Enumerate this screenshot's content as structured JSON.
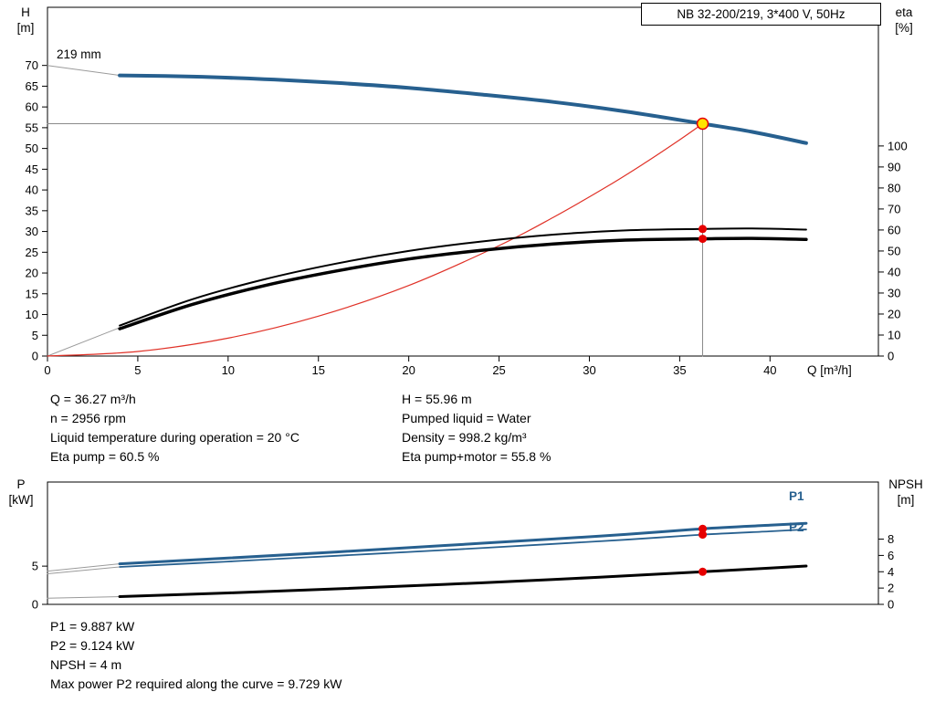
{
  "title_box": "NB 32-200/219, 3*400 V, 50Hz",
  "info_top": {
    "left": [
      "Q = 36.27 m³/h",
      "n = 2956 rpm",
      "Liquid temperature during operation = 20 °C",
      "Eta pump = 60.5 %"
    ],
    "right": [
      "H = 55.96 m",
      "Pumped liquid = Water",
      "Density = 998.2 kg/m³",
      "Eta pump+motor = 55.8 %"
    ]
  },
  "info_bottom": [
    "P1 = 9.887 kW",
    "P2 = 9.124 kW",
    "NPSH = 4 m",
    "Max power P2 required along the curve = 9.729 kW"
  ],
  "colors": {
    "curve_blue": "#27608f",
    "curve_black": "#000000",
    "curve_red": "#e03127",
    "grey_line": "#9a9a9a",
    "duty_grey": "#8a8a8a",
    "dot_red": "#e60000",
    "dot_yellow": "#ffe400"
  },
  "chart_data": [
    {
      "type": "line",
      "title": "NB 32-200/219, 3*400 V, 50Hz",
      "impeller_label": "219 mm",
      "axes": {
        "x": {
          "label": "Q [m³/h]",
          "min": 0,
          "max": 46,
          "ticks": [
            0,
            5,
            10,
            15,
            20,
            25,
            30,
            35,
            40
          ]
        },
        "left": {
          "label": "H",
          "unit": "[m]",
          "min": 0,
          "max": 84,
          "ticks": [
            0,
            5,
            10,
            15,
            20,
            25,
            30,
            35,
            40,
            45,
            50,
            55,
            60,
            65,
            70
          ]
        },
        "right": {
          "label": "eta",
          "unit": "[%]",
          "min": 0,
          "max": 166,
          "ticks": [
            0,
            10,
            20,
            30,
            40,
            50,
            60,
            70,
            80,
            90,
            100
          ]
        }
      },
      "series": [
        {
          "name": "duty-flow-line",
          "axis": "left",
          "color": "#8a8a8a",
          "width": 1,
          "smooth": false,
          "x": [
            36.27,
            36.27
          ],
          "y": [
            0,
            55.96
          ]
        },
        {
          "name": "duty-head-line",
          "axis": "left",
          "color": "#8a8a8a",
          "width": 1,
          "smooth": false,
          "x": [
            0,
            36.27
          ],
          "y": [
            55.96,
            55.96
          ]
        },
        {
          "name": "head-extension",
          "axis": "left",
          "color": "#9a9a9a",
          "width": 1,
          "smooth": false,
          "x": [
            0,
            4
          ],
          "y": [
            70,
            67.6
          ]
        },
        {
          "name": "eta-extension",
          "axis": "right",
          "color": "#9a9a9a",
          "width": 1,
          "smooth": false,
          "x": [
            0,
            4
          ],
          "y": [
            0,
            13.5
          ]
        },
        {
          "name": "system-curve",
          "axis": "left",
          "color": "#e03127",
          "width": 1.2,
          "smooth": true,
          "x": [
            0,
            5,
            10,
            15,
            20,
            25,
            28,
            31,
            33,
            35,
            36.27
          ],
          "y": [
            0,
            1.1,
            4.3,
            9.6,
            17.0,
            26.6,
            33.4,
            40.9,
            46.3,
            52.1,
            55.96
          ]
        },
        {
          "name": "eta-pump",
          "axis": "right",
          "color": "#000000",
          "width": 2,
          "smooth": true,
          "x": [
            4,
            8,
            12,
            16,
            20,
            24,
            28,
            32,
            36.27,
            39,
            42
          ],
          "y": [
            14.5,
            27,
            36.5,
            44,
            50,
            54.5,
            57.8,
            59.8,
            60.5,
            60.7,
            60.2
          ]
        },
        {
          "name": "eta-pump-motor",
          "axis": "right",
          "color": "#000000",
          "width": 3.5,
          "smooth": true,
          "x": [
            4,
            8,
            12,
            16,
            20,
            24,
            28,
            32,
            36.27,
            39,
            42
          ],
          "y": [
            13,
            24.5,
            33.5,
            40.5,
            46.2,
            50.3,
            53.3,
            55.2,
            55.8,
            56.0,
            55.5
          ]
        },
        {
          "name": "head-219mm",
          "axis": "left",
          "color": "#27608f",
          "width": 4,
          "smooth": true,
          "x": [
            4,
            8,
            12,
            16,
            20,
            24,
            28,
            32,
            36.27,
            39,
            42
          ],
          "y": [
            67.6,
            67.3,
            66.7,
            65.8,
            64.6,
            63.0,
            61.2,
            58.9,
            55.96,
            54.0,
            51.3
          ]
        }
      ],
      "markers": [
        {
          "name": "duty-point",
          "axis": "left",
          "x": 36.27,
          "y": 55.96,
          "r": 6,
          "fill": "#ffe400",
          "stroke": "#e60000"
        },
        {
          "name": "eta-pump-point",
          "axis": "right",
          "x": 36.27,
          "y": 60.5,
          "r": 4.5,
          "fill": "#e60000"
        },
        {
          "name": "eta-pump-motor-point",
          "axis": "right",
          "x": 36.27,
          "y": 55.8,
          "r": 4.5,
          "fill": "#e60000"
        }
      ]
    },
    {
      "type": "line",
      "series_labels": {
        "p1": "P1",
        "p2": "P2"
      },
      "axes": {
        "x": {
          "label": "",
          "min": 0,
          "max": 46,
          "ticks": []
        },
        "left": {
          "label": "P",
          "unit": "[kW]",
          "min": 0,
          "max": 16,
          "ticks": [
            0,
            5
          ]
        },
        "right": {
          "label": "NPSH",
          "unit": "[m]",
          "min": 0,
          "max": 15,
          "ticks": [
            0,
            2,
            4,
            6,
            8
          ]
        }
      },
      "series": [
        {
          "name": "p1-extension",
          "axis": "left",
          "color": "#9a9a9a",
          "width": 1,
          "smooth": false,
          "x": [
            0,
            4
          ],
          "y": [
            4.35,
            5.3
          ]
        },
        {
          "name": "p2-extension",
          "axis": "left",
          "color": "#9a9a9a",
          "width": 1,
          "smooth": false,
          "x": [
            0,
            4
          ],
          "y": [
            4.0,
            4.9
          ]
        },
        {
          "name": "npsh-extension",
          "axis": "right",
          "color": "#9a9a9a",
          "width": 1,
          "smooth": false,
          "x": [
            0,
            4
          ],
          "y": [
            0.75,
            0.95
          ]
        },
        {
          "name": "npsh-curve",
          "axis": "right",
          "color": "#000000",
          "width": 3,
          "smooth": true,
          "x": [
            4,
            10,
            16,
            22,
            28,
            32,
            36.27,
            40,
            42
          ],
          "y": [
            0.95,
            1.4,
            1.9,
            2.45,
            3.05,
            3.5,
            4.0,
            4.45,
            4.7
          ]
        },
        {
          "name": "p2-curve",
          "axis": "left",
          "color": "#27608f",
          "width": 1.8,
          "smooth": true,
          "x": [
            4,
            10,
            16,
            22,
            28,
            32,
            36.27,
            40,
            42
          ],
          "y": [
            4.9,
            5.6,
            6.35,
            7.1,
            7.9,
            8.45,
            9.124,
            9.55,
            9.8
          ]
        },
        {
          "name": "p1-curve",
          "axis": "left",
          "color": "#27608f",
          "width": 3,
          "smooth": true,
          "x": [
            4,
            10,
            16,
            22,
            28,
            32,
            36.27,
            40,
            42
          ],
          "y": [
            5.3,
            6.05,
            6.85,
            7.7,
            8.55,
            9.15,
            9.887,
            10.35,
            10.6
          ]
        }
      ],
      "markers": [
        {
          "name": "p1-point",
          "axis": "left",
          "x": 36.27,
          "y": 9.887,
          "r": 4.5,
          "fill": "#e60000"
        },
        {
          "name": "p2-point",
          "axis": "left",
          "x": 36.27,
          "y": 9.124,
          "r": 4.5,
          "fill": "#e60000"
        },
        {
          "name": "npsh-point",
          "axis": "right",
          "x": 36.27,
          "y": 4.0,
          "r": 4.5,
          "fill": "#e60000"
        }
      ]
    }
  ]
}
